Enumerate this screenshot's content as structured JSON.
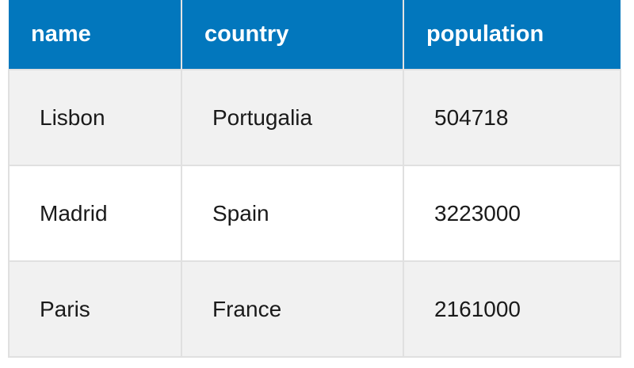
{
  "table": {
    "headers": [
      "name",
      "country",
      "population"
    ],
    "rows": [
      [
        "Lisbon",
        "Portugalia",
        "504718"
      ],
      [
        "Madrid",
        "Spain",
        "3223000"
      ],
      [
        "Paris",
        "France",
        "2161000"
      ]
    ]
  },
  "colors": {
    "header_bg": "#0277bd",
    "header_text": "#ffffff",
    "row_odd_bg": "#f1f1f1",
    "row_even_bg": "#ffffff",
    "border": "#e0e0e0"
  }
}
